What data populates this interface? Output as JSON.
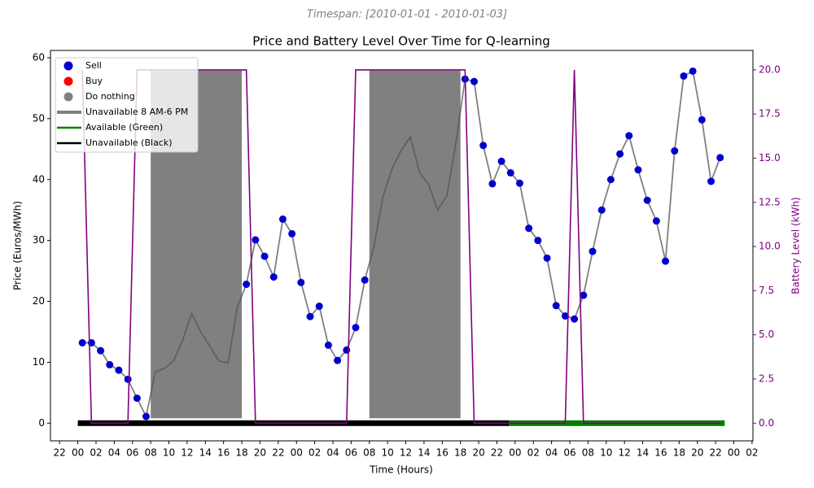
{
  "chart_data": {
    "type": "line",
    "subtitle": "Timespan: [2010-01-01 - 2010-01-03]",
    "title": "Price and Battery Level Over Time for Q-learning",
    "xlabel": "Time (Hours)",
    "ylabel": "Price (Euros/MWh)",
    "y2label": "Battery Level (kWh)",
    "xlim": [
      -3.0,
      74.1
    ],
    "ylim": [
      -2.9,
      61.2
    ],
    "y2lim": [
      -1.0,
      21.1
    ],
    "xticks": [
      {
        "value": -2,
        "label": "22"
      },
      {
        "value": 0,
        "label": "00"
      },
      {
        "value": 2,
        "label": "02"
      },
      {
        "value": 4,
        "label": "04"
      },
      {
        "value": 6,
        "label": "06"
      },
      {
        "value": 8,
        "label": "08"
      },
      {
        "value": 10,
        "label": "10"
      },
      {
        "value": 12,
        "label": "12"
      },
      {
        "value": 14,
        "label": "14"
      },
      {
        "value": 16,
        "label": "16"
      },
      {
        "value": 18,
        "label": "18"
      },
      {
        "value": 20,
        "label": "20"
      },
      {
        "value": 22,
        "label": "22"
      },
      {
        "value": 24,
        "label": "00"
      },
      {
        "value": 26,
        "label": "02"
      },
      {
        "value": 28,
        "label": "04"
      },
      {
        "value": 30,
        "label": "06"
      },
      {
        "value": 32,
        "label": "08"
      },
      {
        "value": 34,
        "label": "10"
      },
      {
        "value": 36,
        "label": "12"
      },
      {
        "value": 38,
        "label": "14"
      },
      {
        "value": 40,
        "label": "16"
      },
      {
        "value": 42,
        "label": "18"
      },
      {
        "value": 44,
        "label": "20"
      },
      {
        "value": 46,
        "label": "22"
      },
      {
        "value": 48,
        "label": "00"
      },
      {
        "value": 50,
        "label": "02"
      },
      {
        "value": 52,
        "label": "04"
      },
      {
        "value": 54,
        "label": "06"
      },
      {
        "value": 56,
        "label": "08"
      },
      {
        "value": 58,
        "label": "10"
      },
      {
        "value": 60,
        "label": "12"
      },
      {
        "value": 62,
        "label": "14"
      },
      {
        "value": 64,
        "label": "16"
      },
      {
        "value": 66,
        "label": "18"
      },
      {
        "value": 68,
        "label": "20"
      },
      {
        "value": 70,
        "label": "22"
      },
      {
        "value": 72,
        "label": "00"
      },
      {
        "value": 74,
        "label": "02"
      }
    ],
    "yticks": [
      0,
      10,
      20,
      30,
      40,
      50,
      60
    ],
    "y2ticks": [
      {
        "value": 0,
        "label": "0.0"
      },
      2.5,
      {
        "value": 5,
        "label": "5.0"
      },
      7.5,
      {
        "value": 10,
        "label": "10.0"
      },
      12.5,
      {
        "value": 15,
        "label": "15.0"
      },
      17.5,
      {
        "value": 20,
        "label": "20.0"
      }
    ],
    "x": [
      0.5,
      1.5,
      2.5,
      3.5,
      4.5,
      5.5,
      6.5,
      7.5,
      8.5,
      9.5,
      10.5,
      11.5,
      12.5,
      13.5,
      14.5,
      15.5,
      16.5,
      17.5,
      18.5,
      19.5,
      20.5,
      21.5,
      22.5,
      23.5,
      24.5,
      25.5,
      26.5,
      27.5,
      28.5,
      29.5,
      30.5,
      31.5,
      32.5,
      33.5,
      34.5,
      35.5,
      36.5,
      37.5,
      38.5,
      39.5,
      40.5,
      41.5,
      42.5,
      43.5,
      44.5,
      45.5,
      46.5,
      47.5,
      48.5,
      49.5,
      50.5,
      51.5,
      52.5,
      53.5,
      54.5,
      55.5,
      56.5,
      57.5,
      58.5,
      59.5,
      60.5,
      61.5,
      62.5,
      63.5,
      64.5,
      65.5,
      66.5,
      67.5,
      68.5,
      69.5,
      70.5
    ],
    "series": [
      {
        "kind": "line",
        "color": "#555555",
        "values": [
          13.2,
          13.2,
          11.9,
          9.6,
          8.7,
          7.2,
          4.1,
          1.1,
          8.4,
          9.0,
          10.2,
          13.6,
          18.0,
          15.0,
          12.6,
          10.2,
          9.9,
          19.0,
          22.8,
          30.1,
          27.4,
          24.0,
          33.5,
          31.1,
          23.1,
          17.5,
          19.2,
          12.8,
          10.3,
          12.0,
          15.7,
          23.5,
          29.0,
          37.2,
          41.8,
          44.8,
          47.0,
          41.2,
          39.2,
          35.0,
          37.3,
          46.0,
          56.5,
          56.1,
          45.6,
          39.3,
          43.0,
          41.1,
          39.4,
          32.0,
          30.0,
          27.1,
          19.3,
          17.6,
          17.1,
          21.0,
          28.2,
          35.0,
          40.0,
          44.2,
          47.2,
          41.6,
          36.6,
          33.2,
          26.6,
          44.7,
          57.0,
          57.8,
          49.8,
          39.7,
          43.6
        ]
      },
      {
        "kind": "marker",
        "color": "#0000cd",
        "values": [
          13.2,
          13.2,
          11.9,
          9.6,
          8.7,
          7.2,
          4.1,
          1.1,
          null,
          null,
          null,
          null,
          null,
          null,
          null,
          null,
          null,
          null,
          22.8,
          30.1,
          27.4,
          24.0,
          33.5,
          31.1,
          23.1,
          17.5,
          19.2,
          12.8,
          10.3,
          12.0,
          15.7,
          23.5,
          null,
          null,
          null,
          null,
          null,
          null,
          null,
          null,
          null,
          null,
          56.5,
          56.1,
          45.6,
          39.3,
          43.0,
          41.1,
          39.4,
          32.0,
          30.0,
          27.1,
          19.3,
          17.6,
          17.1,
          21.0,
          28.2,
          35.0,
          40.0,
          44.2,
          47.2,
          41.6,
          36.6,
          33.2,
          26.6,
          44.7,
          57.0,
          57.8,
          49.8,
          39.7,
          43.6
        ]
      },
      {
        "kind": "line",
        "axis": "y2",
        "color": "#800080",
        "values": [
          20,
          0,
          0,
          0,
          0,
          0,
          20,
          20,
          20,
          20,
          20,
          20,
          20,
          20,
          20,
          20,
          20,
          20,
          20,
          0,
          0,
          0,
          0,
          0,
          0,
          0,
          0,
          0,
          0,
          0,
          20,
          20,
          20,
          20,
          20,
          20,
          20,
          20,
          20,
          20,
          20,
          20,
          20,
          0,
          0,
          0,
          0,
          0,
          0,
          0,
          0,
          0,
          0,
          0,
          20,
          0,
          0,
          0,
          0,
          0,
          0,
          0,
          0,
          0,
          0,
          0,
          0,
          0,
          0,
          0,
          0
        ]
      }
    ],
    "shading": {
      "color": "#808080",
      "x": [
        [
          8,
          18
        ],
        [
          32,
          42
        ]
      ],
      "y": [
        0.8,
        57.9
      ]
    },
    "availability": [
      {
        "color": "#000000",
        "start": 0,
        "end": 47.3
      },
      {
        "color": "#008000",
        "start": 47.3,
        "end": 71
      }
    ],
    "legend_position": "upper left",
    "legend": [
      {
        "label": "Sell",
        "kind": "marker",
        "color": "#0000cd"
      },
      {
        "label": "Buy",
        "kind": "marker",
        "color": "#ff0000"
      },
      {
        "label": "Do nothing",
        "kind": "marker",
        "color": "#808080"
      },
      {
        "label": "Unavailable 8 AM-6 PM",
        "kind": "line",
        "color": "#808080"
      },
      {
        "label": "Available (Green)",
        "kind": "line",
        "color": "#008000"
      },
      {
        "label": "Unavailable (Black)",
        "kind": "line",
        "color": "#000000"
      }
    ]
  }
}
